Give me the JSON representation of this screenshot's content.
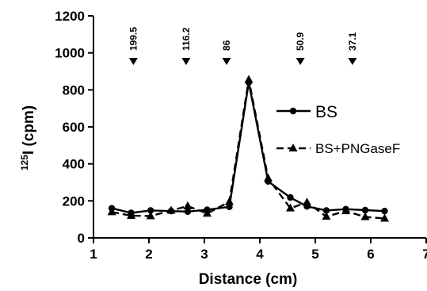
{
  "chart_data": {
    "type": "line",
    "xlabel": "Distance (cm)",
    "ylabel_sup": "125",
    "ylabel_rest": "I (cpm)",
    "xlim": [
      1,
      7
    ],
    "ylim": [
      0,
      1200
    ],
    "x_ticks": [
      "1",
      "2",
      "3",
      "4",
      "5",
      "6",
      "7"
    ],
    "y_ticks": [
      "0",
      "200",
      "400",
      "600",
      "800",
      "1000",
      "1200"
    ],
    "grid": false,
    "legend_position": "right",
    "molecular_weight_markers": [
      {
        "x": 1.72,
        "label": "199.5"
      },
      {
        "x": 2.67,
        "label": "116.2"
      },
      {
        "x": 3.4,
        "label": "86"
      },
      {
        "x": 4.73,
        "label": "50.9"
      },
      {
        "x": 5.67,
        "label": "37.1"
      }
    ],
    "series": [
      {
        "name": "BS",
        "marker": "circle",
        "line_style": "solid",
        "color": "#000000",
        "points": [
          [
            1.33,
            160
          ],
          [
            1.68,
            135
          ],
          [
            2.03,
            148
          ],
          [
            2.4,
            145
          ],
          [
            2.7,
            142
          ],
          [
            3.05,
            152
          ],
          [
            3.45,
            168
          ],
          [
            3.8,
            840
          ],
          [
            4.15,
            305
          ],
          [
            4.55,
            218
          ],
          [
            4.85,
            170
          ],
          [
            5.2,
            148
          ],
          [
            5.55,
            155
          ],
          [
            5.9,
            150
          ],
          [
            6.25,
            145
          ]
        ]
      },
      {
        "name": "BS+PNGaseF",
        "marker": "triangle",
        "line_style": "dashed",
        "color": "#000000",
        "points": [
          [
            1.33,
            140
          ],
          [
            1.68,
            120
          ],
          [
            2.03,
            118
          ],
          [
            2.4,
            148
          ],
          [
            2.7,
            172
          ],
          [
            3.05,
            132
          ],
          [
            3.45,
            195
          ],
          [
            3.8,
            855
          ],
          [
            4.15,
            322
          ],
          [
            4.55,
            160
          ],
          [
            4.85,
            192
          ],
          [
            5.2,
            115
          ],
          [
            5.55,
            145
          ],
          [
            5.9,
            113
          ],
          [
            6.25,
            105
          ]
        ]
      }
    ]
  }
}
